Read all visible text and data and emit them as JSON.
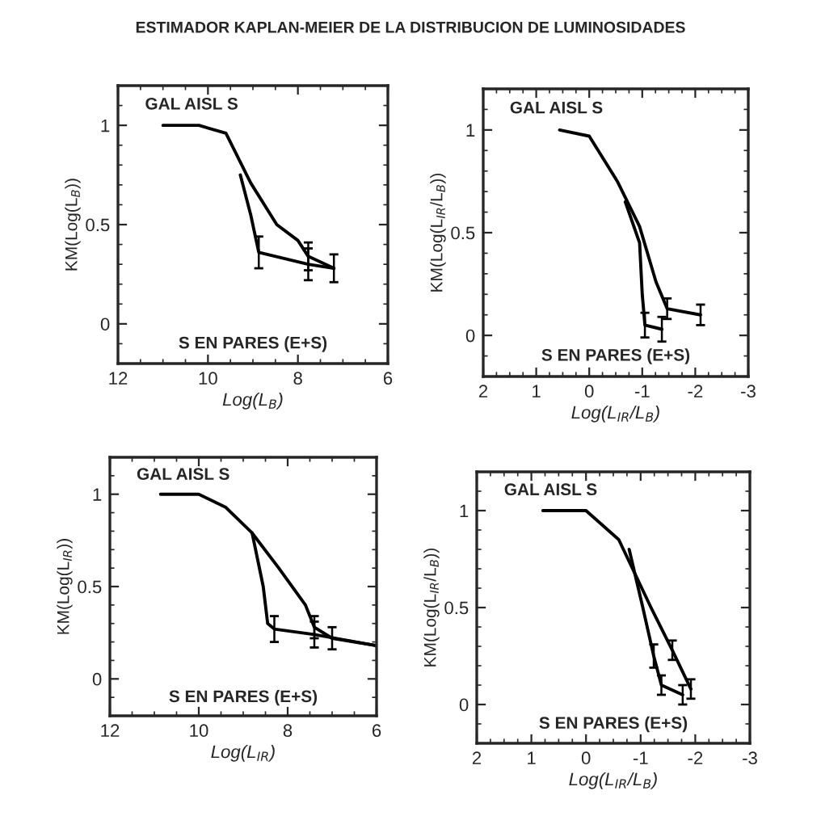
{
  "chart_data": [
    {
      "type": "line",
      "title": "ESTIMADOR KAPLAN-MEIER DE LA DISTRIBUCION DE LUMINOSIDADES",
      "xlabel": "Log(L$_{B}$)",
      "ylabel": "KM(Log(L$_{B}$))",
      "xlim": [
        12,
        6
      ],
      "ylim": [
        -0.2,
        1.2
      ],
      "xticks": [
        12,
        10,
        8,
        6
      ],
      "yticks": [
        0,
        0.5,
        1
      ],
      "legend": false,
      "grid": false,
      "marker": "none",
      "line_style": "solid",
      "annotations": [
        "GAL AISL S",
        "S EN PARES (E+S)"
      ],
      "series": [
        {
          "color": "#000000",
          "x": [
            11.0,
            10.2,
            9.6,
            9.05,
            8.47,
            8.0,
            7.77,
            7.2
          ],
          "values": [
            1,
            1,
            0.96,
            0.71,
            0.5,
            0.42,
            0.34,
            0.28
          ],
          "errors": [
            null,
            null,
            null,
            null,
            null,
            null,
            0.07,
            0.07
          ]
        },
        {
          "color": "#000000",
          "x": [
            9.28,
            9.05,
            8.87,
            7.77,
            7.2
          ],
          "values": [
            0.75,
            0.55,
            0.36,
            0.3,
            0.28
          ],
          "errors": [
            null,
            null,
            0.08,
            0.08,
            null
          ]
        }
      ]
    },
    {
      "type": "line",
      "xlabel": "Log(L$_{IR}$/L$_{B}$)",
      "ylabel": "KM(Log(L$_{IR}$/L$_{B}$))",
      "xlim": [
        2,
        -3
      ],
      "ylim": [
        -0.2,
        1.2
      ],
      "xticks": [
        2,
        1,
        0,
        -1,
        -2,
        -3
      ],
      "yticks": [
        0,
        0.5,
        1
      ],
      "legend": false,
      "grid": false,
      "marker": "none",
      "line_style": "solid",
      "annotations": [
        "GAL AISL S",
        "S EN PARES (E+S)"
      ],
      "series": [
        {
          "color": "#000000",
          "x": [
            0.56,
            0.0,
            -0.53,
            -0.95,
            -1.26,
            -1.47,
            -2.1
          ],
          "values": [
            1,
            0.97,
            0.75,
            0.53,
            0.26,
            0.13,
            0.1
          ],
          "errors": [
            null,
            null,
            null,
            null,
            null,
            0.05,
            0.05
          ]
        },
        {
          "color": "#000000",
          "x": [
            -0.68,
            -0.95,
            -1.0,
            -1.05,
            -1.37
          ],
          "values": [
            0.65,
            0.45,
            0.2,
            0.05,
            0.03
          ],
          "errors": [
            null,
            null,
            null,
            0.06,
            0.06
          ]
        }
      ]
    },
    {
      "type": "line",
      "xlabel": "Log(L$_{IR}$)",
      "ylabel": "KM(Log(L$_{IR}$))",
      "xlim": [
        12,
        6
      ],
      "ylim": [
        -0.2,
        1.2
      ],
      "xticks": [
        12,
        10,
        8,
        6
      ],
      "yticks": [
        0,
        0.5,
        1
      ],
      "legend": false,
      "grid": false,
      "marker": "none",
      "line_style": "solid",
      "annotations": [
        "GAL AISL S",
        "S EN PARES (E+S)"
      ],
      "series": [
        {
          "color": "#000000",
          "x": [
            10.86,
            10.0,
            9.4,
            8.8,
            8.2,
            7.6,
            7.4,
            7.0,
            6.0
          ],
          "values": [
            1,
            1,
            0.93,
            0.79,
            0.6,
            0.4,
            0.28,
            0.22,
            0.18
          ],
          "errors": [
            null,
            null,
            null,
            null,
            null,
            null,
            0.06,
            0.06,
            null
          ]
        },
        {
          "color": "#000000",
          "x": [
            8.8,
            8.55,
            8.45,
            8.3,
            7.4,
            6.0
          ],
          "values": [
            0.79,
            0.5,
            0.3,
            0.27,
            0.24,
            0.18
          ],
          "errors": [
            null,
            null,
            null,
            0.07,
            0.07,
            null
          ]
        }
      ]
    },
    {
      "type": "line",
      "xlabel": "Log(L$_{IR}$/L$_{B}$)",
      "ylabel": "KM(Log(L$_{IR}$/L$_{B}$))",
      "xlim": [
        2,
        -3
      ],
      "ylim": [
        -0.2,
        1.2
      ],
      "xticks": [
        2,
        1,
        0,
        -1,
        -2,
        -3
      ],
      "yticks": [
        0,
        0.5,
        1
      ],
      "legend": false,
      "grid": false,
      "marker": "none",
      "line_style": "solid",
      "annotations": [
        "GAL AISL S",
        "S EN PARES (E+S)"
      ],
      "series": [
        {
          "color": "#000000",
          "x": [
            0.79,
            0.0,
            -0.6,
            -1.19,
            -1.58,
            -1.92
          ],
          "values": [
            1,
            1,
            0.85,
            0.5,
            0.28,
            0.08
          ],
          "errors": [
            null,
            null,
            null,
            null,
            0.05,
            0.05
          ]
        },
        {
          "color": "#000000",
          "x": [
            -0.79,
            -1.04,
            -1.24,
            -1.38,
            -1.77
          ],
          "values": [
            0.8,
            0.5,
            0.25,
            0.1,
            0.05
          ],
          "errors": [
            null,
            null,
            0.06,
            0.05,
            0.05
          ]
        }
      ]
    }
  ]
}
